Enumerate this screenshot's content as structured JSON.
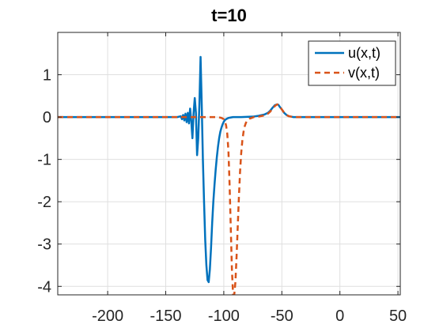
{
  "chart_data": {
    "type": "line",
    "title": "t=10",
    "xlabel": "",
    "ylabel": "",
    "xlim": [
      -243,
      52
    ],
    "ylim": [
      -4.2,
      2.0
    ],
    "xticks": [
      -200,
      -150,
      -100,
      -50,
      0,
      50
    ],
    "xtick_labels": [
      "-200",
      "-150",
      "-100",
      "-50",
      "0",
      "50"
    ],
    "yticks": [
      1,
      0,
      -1,
      -2,
      -3,
      -4
    ],
    "ytick_labels": [
      "1",
      "0",
      "-1",
      "-2",
      "-3",
      "-4"
    ],
    "grid": true,
    "legend_position": "top-right",
    "series": [
      {
        "name": "u(x,t)",
        "color": "#0072BD",
        "style": "solid",
        "x": [
          -243,
          -140,
          -137,
          -136,
          -135,
          -134,
          -133,
          -132,
          -131,
          -130,
          -129,
          -128,
          -127,
          -126,
          -125,
          -124,
          -123,
          -122,
          -121,
          -120,
          -119,
          -118,
          -117,
          -116,
          -115,
          -114,
          -113,
          -112,
          -111,
          -110,
          -109,
          -108,
          -107,
          -106,
          -105,
          -104,
          -103,
          -102,
          -101,
          -100,
          -99,
          -98,
          -96,
          -94,
          -92,
          -90,
          -85,
          -75,
          -70,
          -65,
          -62,
          -60,
          -58,
          -56,
          -54,
          -53,
          -52,
          -50,
          -48,
          -46,
          -44,
          -42,
          -40,
          -35,
          52
        ],
        "y": [
          0,
          0,
          0.02,
          -0.05,
          0.05,
          -0.08,
          0.08,
          -0.12,
          0.1,
          -0.15,
          0.2,
          -0.1,
          -0.5,
          0.1,
          0.45,
          0.1,
          -0.9,
          -0.5,
          0.3,
          1.42,
          0.3,
          -1.0,
          -2.0,
          -2.9,
          -3.5,
          -3.85,
          -3.9,
          -3.6,
          -3.1,
          -2.5,
          -2.0,
          -1.6,
          -1.25,
          -0.95,
          -0.7,
          -0.5,
          -0.35,
          -0.25,
          -0.17,
          -0.11,
          -0.07,
          -0.05,
          -0.02,
          -0.01,
          0,
          0,
          0,
          0.01,
          0.03,
          0.06,
          0.1,
          0.15,
          0.22,
          0.28,
          0.3,
          0.29,
          0.25,
          0.18,
          0.1,
          0.05,
          0.02,
          0.01,
          0,
          0,
          0
        ]
      },
      {
        "name": "v(x,t)",
        "color": "#D95319",
        "style": "dashed",
        "x": [
          -243,
          -105,
          -102,
          -100,
          -99,
          -98,
          -97,
          -96,
          -95,
          -94,
          -93,
          -92,
          -91,
          -90,
          -89,
          -88,
          -87,
          -86,
          -85,
          -84,
          -83,
          -82,
          -81,
          -80,
          -79,
          -78,
          -77,
          -76,
          -75,
          -74,
          -70,
          -65,
          -62,
          -60,
          -58,
          -56,
          -54,
          -53,
          -52,
          -50,
          -48,
          -46,
          -44,
          -42,
          -40,
          -35,
          52
        ],
        "y": [
          0,
          0,
          -0.02,
          -0.05,
          -0.1,
          -0.2,
          -0.4,
          -0.8,
          -1.6,
          -2.6,
          -3.6,
          -4.2,
          -4.2,
          -3.9,
          -3.3,
          -2.6,
          -1.9,
          -1.3,
          -0.85,
          -0.55,
          -0.35,
          -0.22,
          -0.14,
          -0.09,
          -0.06,
          -0.04,
          -0.03,
          -0.02,
          -0.01,
          0,
          0.01,
          0.04,
          0.08,
          0.13,
          0.2,
          0.26,
          0.3,
          0.29,
          0.26,
          0.18,
          0.1,
          0.05,
          0.02,
          0.01,
          0,
          0,
          0
        ]
      }
    ]
  }
}
